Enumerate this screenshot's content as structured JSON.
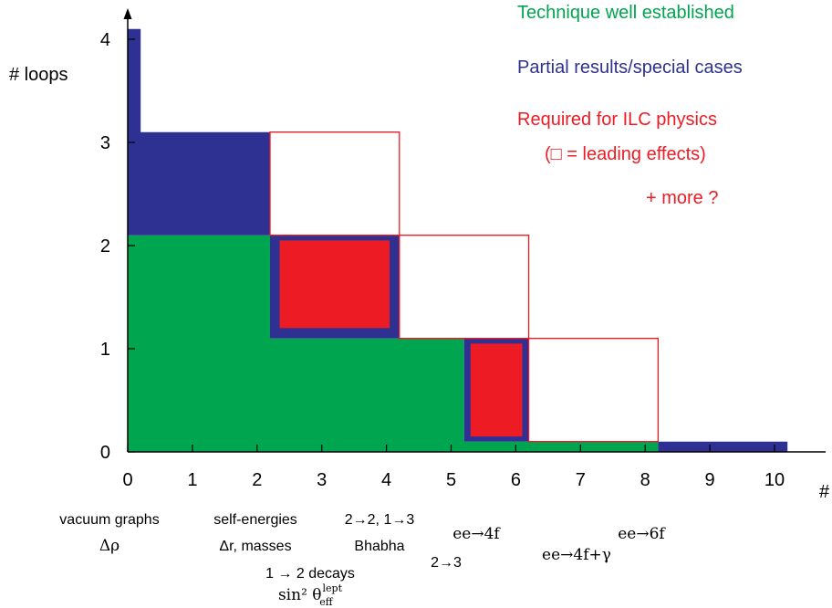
{
  "chart_data": {
    "type": "area",
    "title": "",
    "xlabel": "#",
    "ylabel": "# loops",
    "xlim": [
      0,
      10.5
    ],
    "ylim": [
      0,
      4
    ],
    "x_ticks": [
      "0",
      "1",
      "2",
      "3",
      "4",
      "5",
      "6",
      "7",
      "8",
      "9",
      "10"
    ],
    "y_ticks": [
      "0",
      "1",
      "2",
      "3",
      "4"
    ],
    "colors": {
      "established": "#00a550",
      "partial": "#2e3192",
      "required": "#ed1c24"
    },
    "legend": [
      {
        "label": "Technique well established",
        "color": "#00a550"
      },
      {
        "label": "Partial results/special cases",
        "color": "#2e3192"
      },
      {
        "label": "Required for ILC physics",
        "color": "#ed1c24"
      },
      {
        "label": "(□ = leading effects)",
        "color": "#ed1c24"
      },
      {
        "label": "+ more ?",
        "color": "#ed1c24"
      }
    ],
    "regions": [
      {
        "category": "established",
        "shape": "filled",
        "points": [
          [
            0,
            0
          ],
          [
            0,
            2.1
          ],
          [
            2.2,
            2.1
          ],
          [
            2.2,
            1.1
          ],
          [
            5.2,
            1.1
          ],
          [
            5.2,
            0.1
          ],
          [
            8.2,
            0.1
          ],
          [
            8.2,
            0
          ]
        ]
      },
      {
        "category": "partial",
        "shape": "filled",
        "points": [
          [
            0,
            2.1
          ],
          [
            0,
            4.1
          ],
          [
            0.2,
            4.1
          ],
          [
            0.2,
            3.1
          ],
          [
            2.2,
            3.1
          ],
          [
            2.2,
            2.1
          ]
        ]
      },
      {
        "category": "partial",
        "shape": "filled",
        "points": [
          [
            8.2,
            0
          ],
          [
            8.2,
            0.1
          ],
          [
            10.2,
            0.1
          ],
          [
            10.2,
            0
          ]
        ]
      },
      {
        "category": "partial",
        "shape": "filled",
        "points": [
          [
            2.2,
            1.1
          ],
          [
            2.2,
            2.1
          ],
          [
            4.2,
            2.1
          ],
          [
            4.2,
            1.1
          ]
        ]
      },
      {
        "category": "required",
        "shape": "filled",
        "points": [
          [
            2.35,
            1.2
          ],
          [
            2.35,
            2.05
          ],
          [
            4.05,
            2.05
          ],
          [
            4.05,
            1.2
          ]
        ]
      },
      {
        "category": "partial",
        "shape": "filled",
        "points": [
          [
            5.2,
            0.1
          ],
          [
            5.2,
            1.1
          ],
          [
            6.2,
            1.1
          ],
          [
            6.2,
            0.1
          ]
        ]
      },
      {
        "category": "required",
        "shape": "filled",
        "points": [
          [
            5.3,
            0.15
          ],
          [
            5.3,
            1.05
          ],
          [
            6.1,
            1.05
          ],
          [
            6.1,
            0.15
          ]
        ]
      },
      {
        "category": "required",
        "shape": "outline",
        "points": [
          [
            2.2,
            2.1
          ],
          [
            2.2,
            3.1
          ],
          [
            4.2,
            3.1
          ],
          [
            4.2,
            2.1
          ]
        ]
      },
      {
        "category": "required",
        "shape": "outline",
        "points": [
          [
            4.2,
            1.1
          ],
          [
            4.2,
            2.1
          ],
          [
            6.2,
            2.1
          ],
          [
            6.2,
            1.1
          ]
        ]
      },
      {
        "category": "required",
        "shape": "outline",
        "points": [
          [
            6.2,
            0.1
          ],
          [
            6.2,
            1.1
          ],
          [
            8.2,
            1.1
          ],
          [
            8.2,
            0.1
          ]
        ]
      }
    ],
    "annotations": [
      {
        "text": "vacuum graphs",
        "style": "sans"
      },
      {
        "text": "Δρ",
        "style": "serif"
      },
      {
        "text": "self-energies",
        "style": "sans"
      },
      {
        "text": "Δr, masses",
        "style": "mixed"
      },
      {
        "text": "1 → 2 decays",
        "style": "sans"
      },
      {
        "text": "sin² θ",
        "style": "serif",
        "sup": "lept",
        "sub": "eff"
      },
      {
        "text": "2→2, 1→3",
        "style": "sans"
      },
      {
        "text": "Bhabha",
        "style": "sans"
      },
      {
        "text": "2→3",
        "style": "sans"
      },
      {
        "text": "ee→4f",
        "style": "serif"
      },
      {
        "text": "ee→4f+γ",
        "style": "serif"
      },
      {
        "text": "ee→6f",
        "style": "serif"
      }
    ]
  }
}
